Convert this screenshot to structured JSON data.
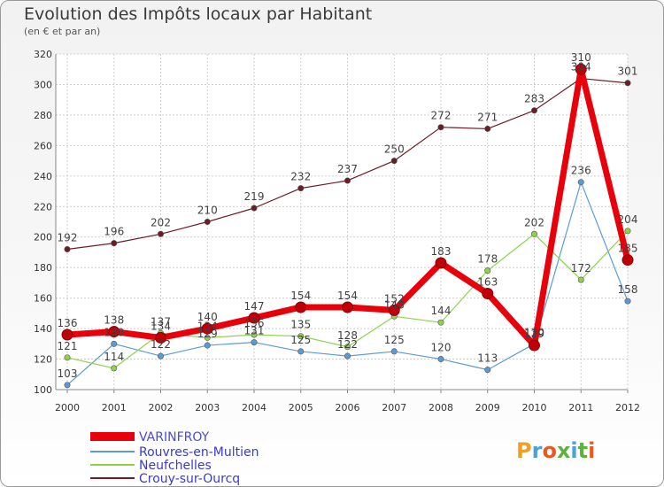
{
  "chart_data": {
    "type": "line",
    "title": "Evolution des Impôts locaux par Habitant",
    "subtitle": "(en € et par an)",
    "x": [
      "2000",
      "2001",
      "2002",
      "2003",
      "2004",
      "2005",
      "2006",
      "2007",
      "2008",
      "2009",
      "2010",
      "2011",
      "2012"
    ],
    "ylim": [
      100,
      320
    ],
    "yticks": [
      100,
      120,
      140,
      160,
      180,
      200,
      220,
      240,
      260,
      280,
      300,
      320
    ],
    "grid": true,
    "legend_position": "bottom-left",
    "series": [
      {
        "name": "VARINFROY",
        "color": "#e8000a",
        "values": [
          136,
          138,
          134,
          140,
          147,
          154,
          154,
          152,
          183,
          163,
          129,
          310,
          185
        ]
      },
      {
        "name": "Rouvres-en-Multien",
        "color": "#5b9bd5",
        "values": [
          103,
          130,
          122,
          129,
          131,
          125,
          122,
          125,
          120,
          113,
          130,
          236,
          158
        ]
      },
      {
        "name": "Neufchelles",
        "color": "#8fd14f",
        "values": [
          121,
          114,
          137,
          134,
          136,
          135,
          128,
          148,
          144,
          178,
          202,
          172,
          204
        ]
      },
      {
        "name": "Crouy-sur-Ourcq",
        "color": "#6b1c24",
        "values": [
          192,
          196,
          202,
          210,
          219,
          232,
          237,
          250,
          272,
          271,
          283,
          304,
          301
        ]
      }
    ]
  },
  "brand": {
    "logo_text": "Proxiti"
  }
}
